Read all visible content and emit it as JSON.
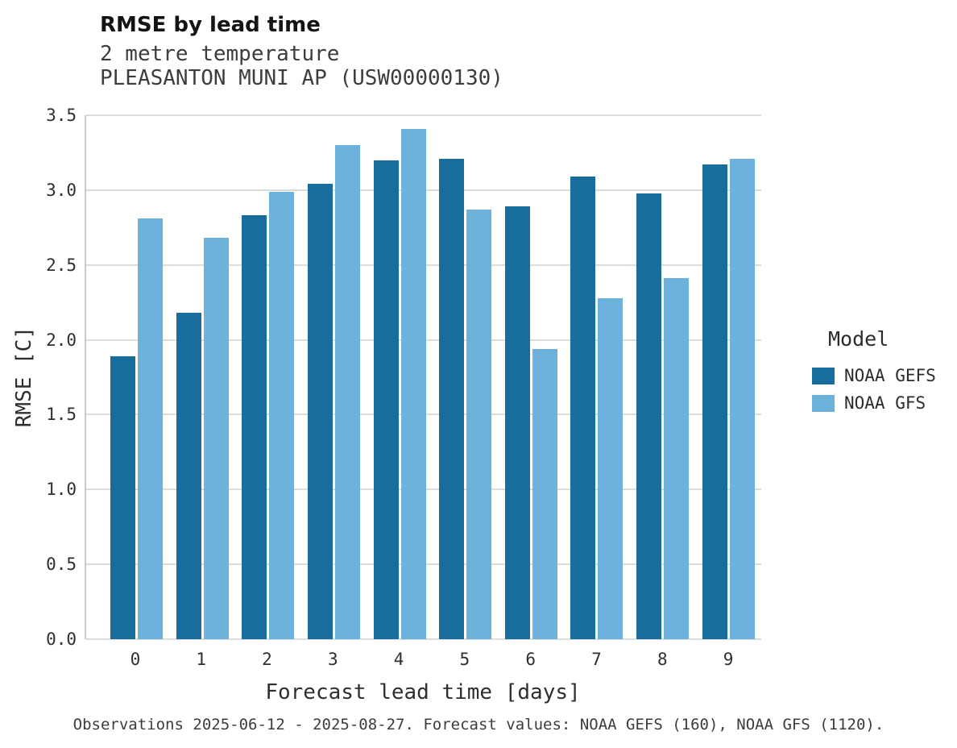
{
  "header": {
    "title": "RMSE by lead time",
    "subtitle_line1": "2 metre temperature",
    "subtitle_line2": "PLEASANTON MUNI AP (USW00000130)"
  },
  "legend": {
    "title": "Model"
  },
  "footer": {
    "text": "Observations 2025-06-12 - 2025-08-27. Forecast values: NOAA GEFS (160), NOAA GFS (1120)."
  },
  "colors": {
    "gefs_dark_blue": "#176d9c",
    "gfs_light_blue": "#6cb2dc",
    "gridline": "#dcdcdc",
    "axis_spine": "#c9c9c9"
  },
  "chart_data": {
    "type": "bar",
    "title": "RMSE by lead time",
    "subtitle": "2 metre temperature — PLEASANTON MUNI AP (USW00000130)",
    "xlabel": "Forecast lead time [days]",
    "ylabel": "RMSE [C]",
    "categories": [
      "0",
      "1",
      "2",
      "3",
      "4",
      "5",
      "6",
      "7",
      "8",
      "9"
    ],
    "series": [
      {
        "name": "NOAA GEFS",
        "color": "#176d9c",
        "values": [
          1.89,
          2.18,
          2.83,
          3.04,
          3.2,
          3.21,
          2.89,
          3.09,
          2.98,
          3.17
        ]
      },
      {
        "name": "NOAA GFS",
        "color": "#6cb2dc",
        "values": [
          2.81,
          2.68,
          2.99,
          3.3,
          3.41,
          2.87,
          1.94,
          2.28,
          2.41,
          3.21
        ]
      }
    ],
    "ylim": [
      0,
      3.5
    ],
    "yticks": [
      0,
      0.5,
      1,
      1.5,
      2,
      2.5,
      3,
      3.5
    ],
    "grid": true,
    "legend_position": "right",
    "legend_title": "Model"
  }
}
